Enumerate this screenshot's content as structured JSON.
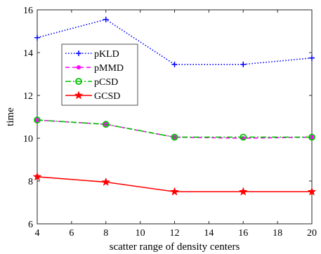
{
  "chart_data": {
    "type": "line",
    "xlabel": "scatter range of density centers",
    "ylabel": "time",
    "x": [
      4,
      8,
      12,
      16,
      20
    ],
    "xlim": [
      4,
      20
    ],
    "ylim": [
      6,
      16
    ],
    "xticks": [
      "4",
      "6",
      "8",
      "10",
      "12",
      "14",
      "16",
      "18",
      "20"
    ],
    "yticks": [
      "6",
      "8",
      "10",
      "12",
      "14",
      "16"
    ],
    "grid": false,
    "legend_position": "top-left",
    "series": [
      {
        "name": "pKLD",
        "values": [
          14.7,
          15.55,
          13.45,
          13.45,
          13.75
        ],
        "color": "#0000ff",
        "dash": "dotted",
        "marker": "plus"
      },
      {
        "name": "pMMD",
        "values": [
          10.85,
          10.65,
          10.05,
          10.0,
          10.05
        ],
        "color": "#ff00ff",
        "dash": "dashed",
        "marker": "dot"
      },
      {
        "name": "pCSD",
        "values": [
          10.85,
          10.65,
          10.05,
          10.05,
          10.05
        ],
        "color": "#00c000",
        "dash": "dashdot",
        "marker": "circle"
      },
      {
        "name": "GCSD",
        "values": [
          8.2,
          7.95,
          7.5,
          7.5,
          7.5
        ],
        "color": "#ff0000",
        "dash": "solid",
        "marker": "star"
      }
    ]
  }
}
